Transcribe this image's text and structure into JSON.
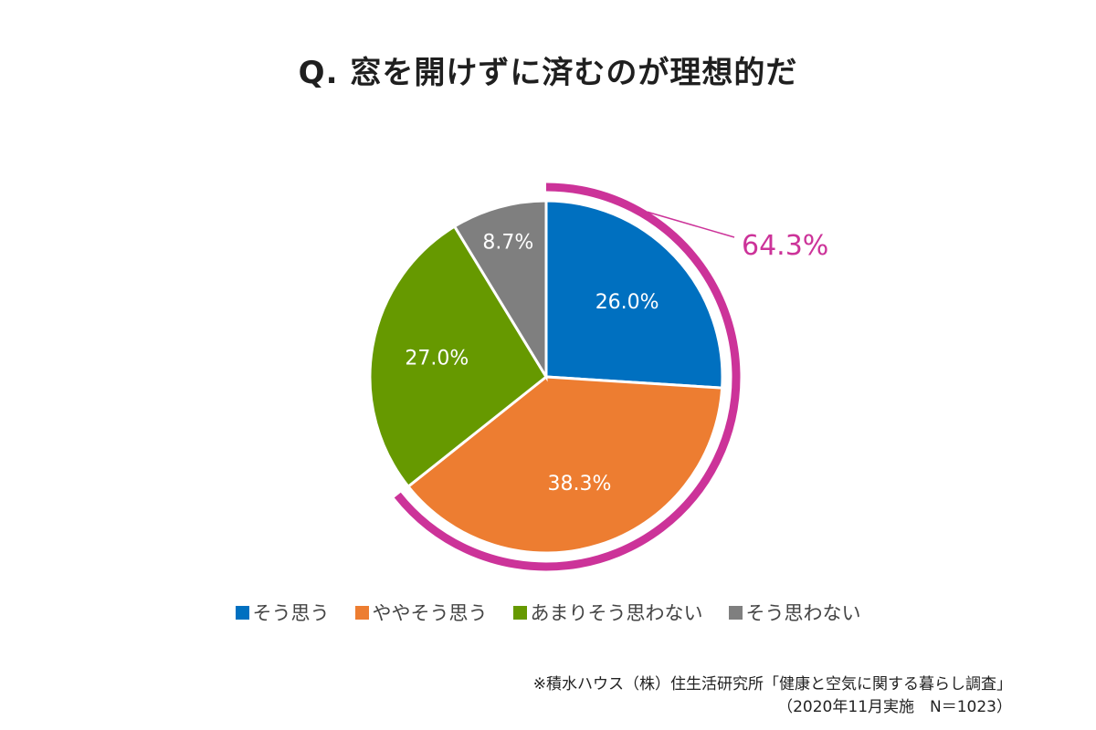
{
  "title": "Q. 窓を開けずに済むのが理想的だ",
  "chart_data": {
    "type": "pie",
    "title": "Q. 窓を開けずに済むのが理想的だ",
    "series": [
      {
        "name": "そう思う",
        "value": 26.0,
        "label": "26.0%",
        "color": "#0070C0"
      },
      {
        "name": "ややそう思う",
        "value": 38.3,
        "label": "38.3%",
        "color": "#ED7D31"
      },
      {
        "name": "あまりそう思わない",
        "value": 27.0,
        "label": "27.0%",
        "color": "#669900"
      },
      {
        "name": "そう思わない",
        "value": 8.7,
        "label": "8.7%",
        "color": "#7F7F7F"
      }
    ],
    "highlight": {
      "label": "64.3%",
      "covers": [
        "そう思う",
        "ややそう思う"
      ],
      "color": "#CC3399"
    },
    "legend_placement": "bottom"
  },
  "source": {
    "line1": "※積水ハウス（株）住生活研究所「健康と空気に関する暮らし調査」",
    "line2": "（2020年11月実施　N＝1023）"
  }
}
